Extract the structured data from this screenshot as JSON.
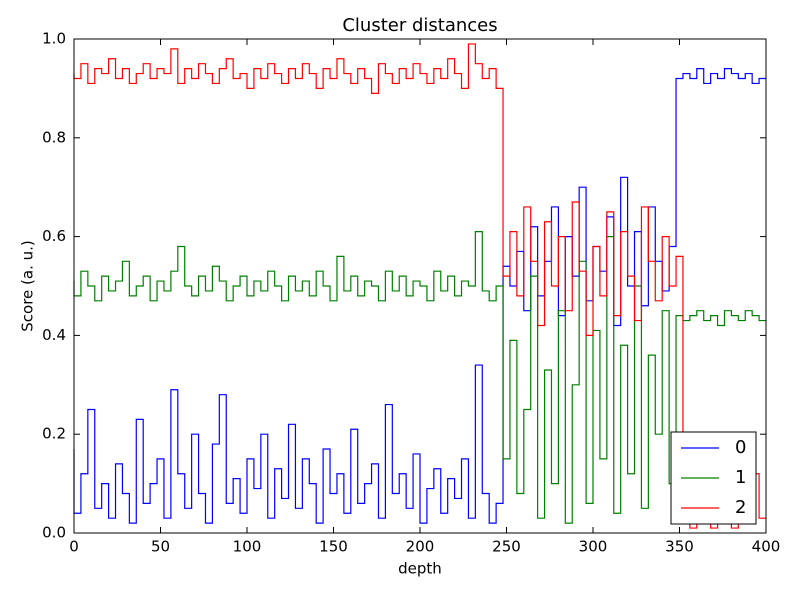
{
  "chart_data": {
    "type": "step",
    "title": "Cluster distances",
    "x_label": "depth",
    "y_label": "Score (a. u.)",
    "x": [
      0,
      4,
      8,
      12,
      16,
      20,
      24,
      28,
      32,
      36,
      40,
      44,
      48,
      52,
      56,
      60,
      64,
      68,
      72,
      76,
      80,
      84,
      88,
      92,
      96,
      100,
      104,
      108,
      112,
      116,
      120,
      124,
      128,
      132,
      136,
      140,
      144,
      148,
      152,
      156,
      160,
      164,
      168,
      172,
      176,
      180,
      184,
      188,
      192,
      196,
      200,
      204,
      208,
      212,
      216,
      220,
      224,
      228,
      232,
      236,
      240,
      244,
      248,
      252,
      256,
      260,
      264,
      268,
      272,
      276,
      280,
      284,
      288,
      292,
      296,
      300,
      304,
      308,
      312,
      316,
      320,
      324,
      328,
      332,
      336,
      340,
      344,
      348,
      352,
      356,
      360,
      364,
      368,
      372,
      376,
      380,
      384,
      388,
      392,
      396,
      400
    ],
    "series": [
      {
        "name": "0",
        "color": "#0000ff",
        "values": [
          0.17,
          0.04,
          0.12,
          0.25,
          0.05,
          0.1,
          0.03,
          0.14,
          0.08,
          0.02,
          0.23,
          0.06,
          0.1,
          0.15,
          0.03,
          0.29,
          0.12,
          0.05,
          0.2,
          0.08,
          0.02,
          0.18,
          0.28,
          0.06,
          0.11,
          0.04,
          0.15,
          0.09,
          0.2,
          0.03,
          0.13,
          0.07,
          0.22,
          0.05,
          0.15,
          0.1,
          0.02,
          0.17,
          0.08,
          0.12,
          0.04,
          0.21,
          0.06,
          0.1,
          0.14,
          0.03,
          0.26,
          0.08,
          0.12,
          0.05,
          0.16,
          0.02,
          0.09,
          0.13,
          0.04,
          0.11,
          0.07,
          0.15,
          0.03,
          0.34,
          0.08,
          0.02,
          0.06,
          0.54,
          0.5,
          0.57,
          0.45,
          0.62,
          0.48,
          0.55,
          0.66,
          0.44,
          0.6,
          0.52,
          0.7,
          0.47,
          0.58,
          0.53,
          0.64,
          0.42,
          0.72,
          0.5,
          0.61,
          0.46,
          0.66,
          0.55,
          0.49,
          0.58,
          0.92,
          0.93,
          0.92,
          0.94,
          0.91,
          0.93,
          0.92,
          0.94,
          0.93,
          0.92,
          0.93,
          0.91,
          0.92
        ]
      },
      {
        "name": "1",
        "color": "#008000",
        "values": [
          0.51,
          0.48,
          0.53,
          0.5,
          0.47,
          0.52,
          0.49,
          0.51,
          0.55,
          0.48,
          0.5,
          0.52,
          0.47,
          0.51,
          0.49,
          0.53,
          0.58,
          0.5,
          0.48,
          0.52,
          0.49,
          0.54,
          0.51,
          0.47,
          0.5,
          0.52,
          0.48,
          0.51,
          0.49,
          0.53,
          0.5,
          0.47,
          0.52,
          0.49,
          0.51,
          0.48,
          0.53,
          0.5,
          0.47,
          0.56,
          0.49,
          0.52,
          0.48,
          0.51,
          0.5,
          0.47,
          0.53,
          0.49,
          0.52,
          0.48,
          0.51,
          0.5,
          0.47,
          0.53,
          0.49,
          0.52,
          0.48,
          0.51,
          0.5,
          0.61,
          0.49,
          0.47,
          0.5,
          0.15,
          0.39,
          0.08,
          0.25,
          0.52,
          0.03,
          0.33,
          0.1,
          0.45,
          0.02,
          0.3,
          0.55,
          0.06,
          0.41,
          0.15,
          0.6,
          0.04,
          0.38,
          0.12,
          0.5,
          0.05,
          0.36,
          0.2,
          0.45,
          0.1,
          0.44,
          0.43,
          0.44,
          0.45,
          0.43,
          0.44,
          0.42,
          0.45,
          0.44,
          0.43,
          0.45,
          0.44,
          0.43
        ]
      },
      {
        "name": "2",
        "color": "#ff0000",
        "values": [
          0.93,
          0.92,
          0.95,
          0.91,
          0.94,
          0.93,
          0.96,
          0.92,
          0.94,
          0.91,
          0.93,
          0.95,
          0.92,
          0.94,
          0.93,
          0.98,
          0.91,
          0.94,
          0.92,
          0.95,
          0.93,
          0.91,
          0.94,
          0.96,
          0.92,
          0.93,
          0.9,
          0.94,
          0.92,
          0.95,
          0.93,
          0.91,
          0.94,
          0.92,
          0.95,
          0.93,
          0.9,
          0.94,
          0.92,
          0.96,
          0.93,
          0.91,
          0.94,
          0.92,
          0.89,
          0.95,
          0.93,
          0.91,
          0.94,
          0.92,
          0.95,
          0.93,
          0.91,
          0.94,
          0.92,
          0.96,
          0.93,
          0.9,
          0.99,
          0.95,
          0.92,
          0.94,
          0.9,
          0.52,
          0.61,
          0.48,
          0.66,
          0.55,
          0.42,
          0.63,
          0.5,
          0.6,
          0.45,
          0.67,
          0.53,
          0.4,
          0.58,
          0.48,
          0.65,
          0.44,
          0.61,
          0.52,
          0.43,
          0.66,
          0.55,
          0.47,
          0.6,
          0.5,
          0.56,
          0.02,
          0.01,
          0.03,
          0.02,
          0.01,
          0.04,
          0.02,
          0.01,
          0.03,
          0.02,
          0.12,
          0.03
        ]
      }
    ],
    "xlim": [
      0,
      400
    ],
    "xticks": [
      0,
      50,
      100,
      150,
      200,
      250,
      300,
      350,
      400
    ],
    "ylim": [
      0,
      1
    ],
    "yticks": [
      {
        "value": 0,
        "label": "0.0"
      },
      0.2,
      0.4,
      0.6,
      0.8,
      {
        "value": 1,
        "label": "1.0"
      }
    ],
    "grid": false,
    "legend": "lower right"
  }
}
